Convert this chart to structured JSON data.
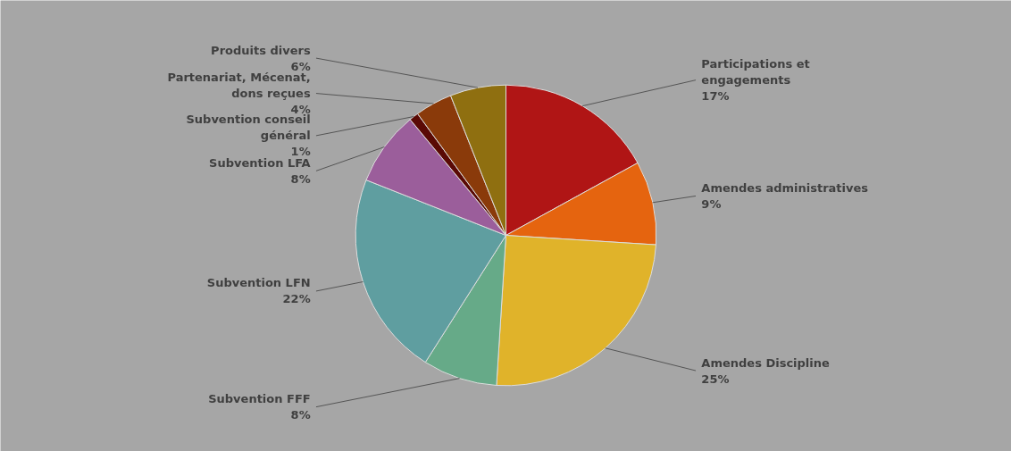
{
  "chart_data": {
    "type": "pie",
    "categories": [
      "Participations et engagements",
      "Amendes administratives",
      "Amendes Discipline",
      "Subvention FFF",
      "Subvention LFN",
      "Subvention LFA",
      "Subvention conseil général",
      "Partenariat, Mécenat, dons reçues",
      "Produits divers"
    ],
    "values": [
      17,
      9,
      25,
      8,
      22,
      8,
      1,
      4,
      6
    ],
    "value_labels": [
      "17%",
      "9%",
      "25%",
      "8%",
      "22%",
      "8%",
      "1%",
      "4%",
      "6%"
    ],
    "colors": [
      "#b01515",
      "#e5640f",
      "#e0b32a",
      "#66aa88",
      "#5f9ea0",
      "#9b5e9b",
      "#5a0a05",
      "#8a3a0a",
      "#8f6f10"
    ]
  }
}
